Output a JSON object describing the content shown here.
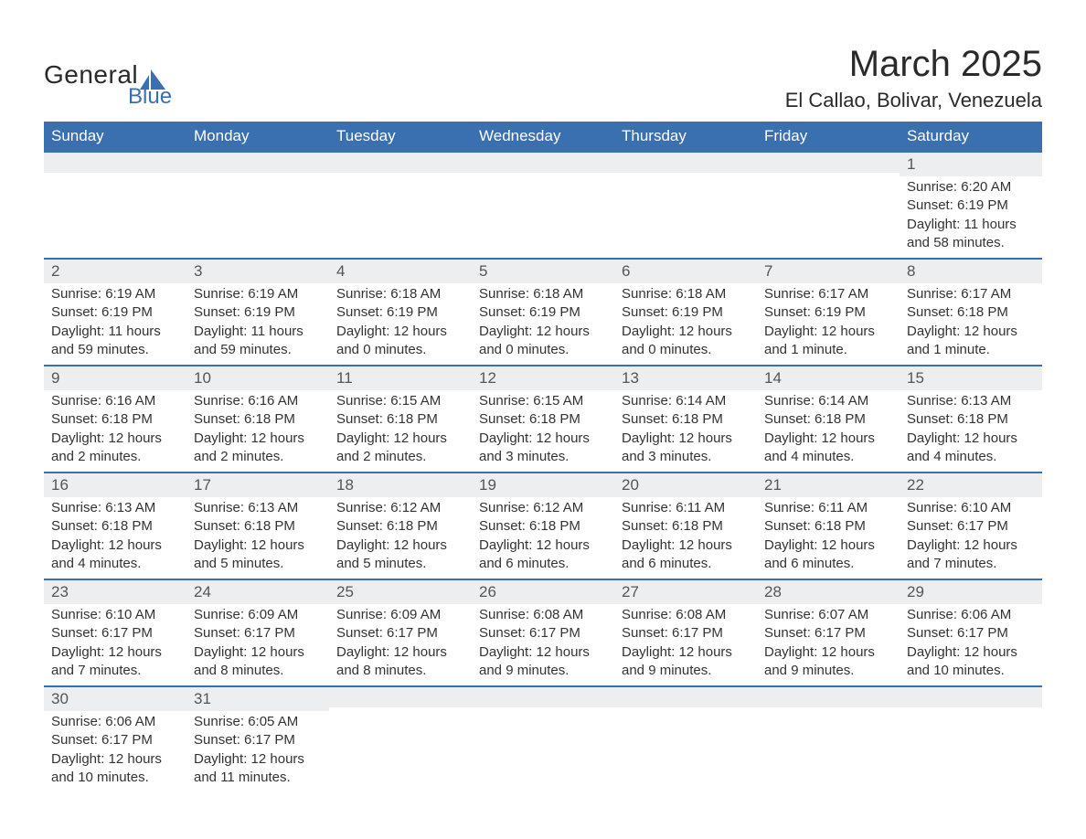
{
  "brand": {
    "word1": "General",
    "word2": "Blue",
    "accent_color": "#3a6fb0",
    "text_color": "#2a2a2a"
  },
  "header": {
    "month_title": "March 2025",
    "location": "El Callao, Bolivar, Venezuela"
  },
  "colors": {
    "header_bg": "#3a6fb0",
    "header_fg": "#ffffff",
    "daynum_bg": "#eceef0",
    "row_divider": "#3a6fb0",
    "body_text": "#333333",
    "page_bg": "#ffffff"
  },
  "typography": {
    "month_title_size_pt": 30,
    "location_size_pt": 16,
    "dow_size_pt": 13,
    "daynum_size_pt": 13,
    "body_size_pt": 11
  },
  "days_of_week": [
    "Sunday",
    "Monday",
    "Tuesday",
    "Wednesday",
    "Thursday",
    "Friday",
    "Saturday"
  ],
  "weeks": [
    [
      {
        "num": "",
        "sunrise": "",
        "sunset": "",
        "daylight": ""
      },
      {
        "num": "",
        "sunrise": "",
        "sunset": "",
        "daylight": ""
      },
      {
        "num": "",
        "sunrise": "",
        "sunset": "",
        "daylight": ""
      },
      {
        "num": "",
        "sunrise": "",
        "sunset": "",
        "daylight": ""
      },
      {
        "num": "",
        "sunrise": "",
        "sunset": "",
        "daylight": ""
      },
      {
        "num": "",
        "sunrise": "",
        "sunset": "",
        "daylight": ""
      },
      {
        "num": "1",
        "sunrise": "Sunrise: 6:20 AM",
        "sunset": "Sunset: 6:19 PM",
        "daylight": "Daylight: 11 hours and 58 minutes."
      }
    ],
    [
      {
        "num": "2",
        "sunrise": "Sunrise: 6:19 AM",
        "sunset": "Sunset: 6:19 PM",
        "daylight": "Daylight: 11 hours and 59 minutes."
      },
      {
        "num": "3",
        "sunrise": "Sunrise: 6:19 AM",
        "sunset": "Sunset: 6:19 PM",
        "daylight": "Daylight: 11 hours and 59 minutes."
      },
      {
        "num": "4",
        "sunrise": "Sunrise: 6:18 AM",
        "sunset": "Sunset: 6:19 PM",
        "daylight": "Daylight: 12 hours and 0 minutes."
      },
      {
        "num": "5",
        "sunrise": "Sunrise: 6:18 AM",
        "sunset": "Sunset: 6:19 PM",
        "daylight": "Daylight: 12 hours and 0 minutes."
      },
      {
        "num": "6",
        "sunrise": "Sunrise: 6:18 AM",
        "sunset": "Sunset: 6:19 PM",
        "daylight": "Daylight: 12 hours and 0 minutes."
      },
      {
        "num": "7",
        "sunrise": "Sunrise: 6:17 AM",
        "sunset": "Sunset: 6:19 PM",
        "daylight": "Daylight: 12 hours and 1 minute."
      },
      {
        "num": "8",
        "sunrise": "Sunrise: 6:17 AM",
        "sunset": "Sunset: 6:18 PM",
        "daylight": "Daylight: 12 hours and 1 minute."
      }
    ],
    [
      {
        "num": "9",
        "sunrise": "Sunrise: 6:16 AM",
        "sunset": "Sunset: 6:18 PM",
        "daylight": "Daylight: 12 hours and 2 minutes."
      },
      {
        "num": "10",
        "sunrise": "Sunrise: 6:16 AM",
        "sunset": "Sunset: 6:18 PM",
        "daylight": "Daylight: 12 hours and 2 minutes."
      },
      {
        "num": "11",
        "sunrise": "Sunrise: 6:15 AM",
        "sunset": "Sunset: 6:18 PM",
        "daylight": "Daylight: 12 hours and 2 minutes."
      },
      {
        "num": "12",
        "sunrise": "Sunrise: 6:15 AM",
        "sunset": "Sunset: 6:18 PM",
        "daylight": "Daylight: 12 hours and 3 minutes."
      },
      {
        "num": "13",
        "sunrise": "Sunrise: 6:14 AM",
        "sunset": "Sunset: 6:18 PM",
        "daylight": "Daylight: 12 hours and 3 minutes."
      },
      {
        "num": "14",
        "sunrise": "Sunrise: 6:14 AM",
        "sunset": "Sunset: 6:18 PM",
        "daylight": "Daylight: 12 hours and 4 minutes."
      },
      {
        "num": "15",
        "sunrise": "Sunrise: 6:13 AM",
        "sunset": "Sunset: 6:18 PM",
        "daylight": "Daylight: 12 hours and 4 minutes."
      }
    ],
    [
      {
        "num": "16",
        "sunrise": "Sunrise: 6:13 AM",
        "sunset": "Sunset: 6:18 PM",
        "daylight": "Daylight: 12 hours and 4 minutes."
      },
      {
        "num": "17",
        "sunrise": "Sunrise: 6:13 AM",
        "sunset": "Sunset: 6:18 PM",
        "daylight": "Daylight: 12 hours and 5 minutes."
      },
      {
        "num": "18",
        "sunrise": "Sunrise: 6:12 AM",
        "sunset": "Sunset: 6:18 PM",
        "daylight": "Daylight: 12 hours and 5 minutes."
      },
      {
        "num": "19",
        "sunrise": "Sunrise: 6:12 AM",
        "sunset": "Sunset: 6:18 PM",
        "daylight": "Daylight: 12 hours and 6 minutes."
      },
      {
        "num": "20",
        "sunrise": "Sunrise: 6:11 AM",
        "sunset": "Sunset: 6:18 PM",
        "daylight": "Daylight: 12 hours and 6 minutes."
      },
      {
        "num": "21",
        "sunrise": "Sunrise: 6:11 AM",
        "sunset": "Sunset: 6:18 PM",
        "daylight": "Daylight: 12 hours and 6 minutes."
      },
      {
        "num": "22",
        "sunrise": "Sunrise: 6:10 AM",
        "sunset": "Sunset: 6:17 PM",
        "daylight": "Daylight: 12 hours and 7 minutes."
      }
    ],
    [
      {
        "num": "23",
        "sunrise": "Sunrise: 6:10 AM",
        "sunset": "Sunset: 6:17 PM",
        "daylight": "Daylight: 12 hours and 7 minutes."
      },
      {
        "num": "24",
        "sunrise": "Sunrise: 6:09 AM",
        "sunset": "Sunset: 6:17 PM",
        "daylight": "Daylight: 12 hours and 8 minutes."
      },
      {
        "num": "25",
        "sunrise": "Sunrise: 6:09 AM",
        "sunset": "Sunset: 6:17 PM",
        "daylight": "Daylight: 12 hours and 8 minutes."
      },
      {
        "num": "26",
        "sunrise": "Sunrise: 6:08 AM",
        "sunset": "Sunset: 6:17 PM",
        "daylight": "Daylight: 12 hours and 9 minutes."
      },
      {
        "num": "27",
        "sunrise": "Sunrise: 6:08 AM",
        "sunset": "Sunset: 6:17 PM",
        "daylight": "Daylight: 12 hours and 9 minutes."
      },
      {
        "num": "28",
        "sunrise": "Sunrise: 6:07 AM",
        "sunset": "Sunset: 6:17 PM",
        "daylight": "Daylight: 12 hours and 9 minutes."
      },
      {
        "num": "29",
        "sunrise": "Sunrise: 6:06 AM",
        "sunset": "Sunset: 6:17 PM",
        "daylight": "Daylight: 12 hours and 10 minutes."
      }
    ],
    [
      {
        "num": "30",
        "sunrise": "Sunrise: 6:06 AM",
        "sunset": "Sunset: 6:17 PM",
        "daylight": "Daylight: 12 hours and 10 minutes."
      },
      {
        "num": "31",
        "sunrise": "Sunrise: 6:05 AM",
        "sunset": "Sunset: 6:17 PM",
        "daylight": "Daylight: 12 hours and 11 minutes."
      },
      {
        "num": "",
        "sunrise": "",
        "sunset": "",
        "daylight": ""
      },
      {
        "num": "",
        "sunrise": "",
        "sunset": "",
        "daylight": ""
      },
      {
        "num": "",
        "sunrise": "",
        "sunset": "",
        "daylight": ""
      },
      {
        "num": "",
        "sunrise": "",
        "sunset": "",
        "daylight": ""
      },
      {
        "num": "",
        "sunrise": "",
        "sunset": "",
        "daylight": ""
      }
    ]
  ]
}
